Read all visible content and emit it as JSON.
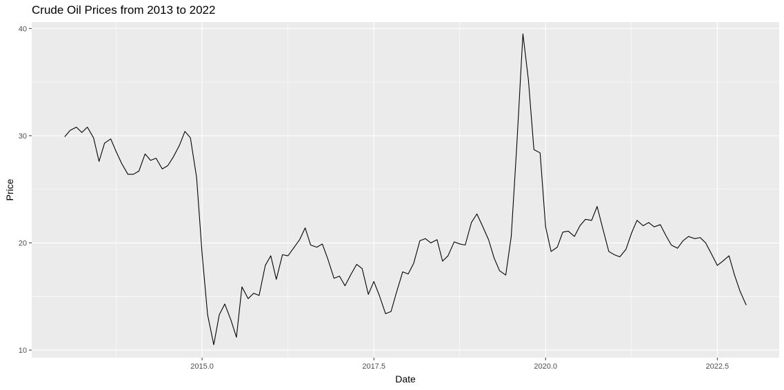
{
  "chart_data": {
    "type": "line",
    "title": "Crude Oil Prices from 2013 to 2022",
    "xlabel": "Date",
    "ylabel": "Price",
    "xlim": [
      2012.52,
      2023.4
    ],
    "ylim": [
      9.3,
      40.6
    ],
    "x_ticks": [
      2015.0,
      2017.5,
      2020.0,
      2022.5
    ],
    "x_tick_labels": [
      "2015.0",
      "2017.5",
      "2020.0",
      "2022.5"
    ],
    "y_ticks": [
      10,
      20,
      30,
      40
    ],
    "y_tick_labels": [
      "10",
      "20",
      "30",
      "40"
    ],
    "grid": true,
    "line_color": "#000000",
    "panel_color": "#ebebeb",
    "grid_color": "#ffffff",
    "series": [
      {
        "x": [
          2013.0,
          2013.08,
          2013.17,
          2013.25,
          2013.33,
          2013.42,
          2013.5,
          2013.58,
          2013.67,
          2013.75,
          2013.83,
          2013.92,
          2014.0,
          2014.08,
          2014.17,
          2014.25,
          2014.33,
          2014.42,
          2014.5,
          2014.58,
          2014.67,
          2014.75,
          2014.83,
          2014.92,
          2015.0,
          2015.08,
          2015.17,
          2015.25,
          2015.33,
          2015.42,
          2015.5,
          2015.58,
          2015.67,
          2015.75,
          2015.83,
          2015.92,
          2016.0,
          2016.08,
          2016.17,
          2016.25,
          2016.33,
          2016.42,
          2016.5,
          2016.58,
          2016.67,
          2016.75,
          2016.83,
          2016.92,
          2017.0,
          2017.08,
          2017.17,
          2017.25,
          2017.33,
          2017.42,
          2017.5,
          2017.58,
          2017.67,
          2017.75,
          2017.83,
          2017.92,
          2018.0,
          2018.08,
          2018.17,
          2018.25,
          2018.33,
          2018.42,
          2018.5,
          2018.58,
          2018.67,
          2018.75,
          2018.83,
          2018.92,
          2019.0,
          2019.08,
          2019.17,
          2019.25,
          2019.33,
          2019.42,
          2019.5,
          2019.58,
          2019.67,
          2019.75,
          2019.83,
          2019.92,
          2020.0,
          2020.08,
          2020.17,
          2020.25,
          2020.33,
          2020.42,
          2020.5,
          2020.58,
          2020.67,
          2020.75,
          2020.83,
          2020.92,
          2021.0,
          2021.08,
          2021.17,
          2021.25,
          2021.33,
          2021.42,
          2021.5,
          2021.58,
          2021.67,
          2021.75,
          2021.83,
          2021.92,
          2022.0,
          2022.08,
          2022.17,
          2022.25,
          2022.33,
          2022.42,
          2022.5,
          2022.58,
          2022.67,
          2022.75,
          2022.83,
          2022.92
        ],
        "y": [
          29.9,
          30.5,
          30.8,
          30.3,
          30.8,
          29.8,
          27.6,
          29.3,
          29.7,
          28.5,
          27.4,
          26.4,
          26.4,
          26.7,
          28.3,
          27.7,
          27.9,
          26.9,
          27.2,
          28.0,
          29.1,
          30.4,
          29.8,
          26.1,
          19.0,
          13.3,
          10.5,
          13.3,
          14.3,
          12.8,
          11.2,
          15.9,
          14.8,
          15.3,
          15.1,
          17.9,
          18.8,
          16.6,
          18.9,
          18.8,
          19.5,
          20.3,
          21.4,
          19.8,
          19.6,
          19.9,
          18.5,
          16.7,
          16.9,
          16.0,
          17.1,
          18.0,
          17.6,
          15.2,
          16.4,
          15.1,
          13.4,
          13.6,
          15.4,
          17.3,
          17.1,
          18.1,
          20.2,
          20.4,
          20.0,
          20.3,
          18.3,
          18.8,
          20.1,
          19.9,
          19.8,
          21.9,
          22.7,
          21.6,
          20.3,
          18.6,
          17.4,
          17.0,
          20.6,
          29.0,
          39.5,
          35.2,
          28.7,
          28.4,
          21.5,
          19.2,
          19.6,
          21.0,
          21.1,
          20.6,
          21.6,
          22.2,
          22.1,
          23.4,
          21.4,
          19.2,
          18.9,
          18.7,
          19.4,
          20.9,
          22.1,
          21.6,
          21.9,
          21.5,
          21.7,
          20.7,
          19.8,
          19.5,
          20.2,
          20.6,
          20.4,
          20.5,
          20.0,
          18.9,
          17.9,
          18.3,
          18.8,
          17.0,
          15.5,
          14.2
        ]
      }
    ]
  }
}
